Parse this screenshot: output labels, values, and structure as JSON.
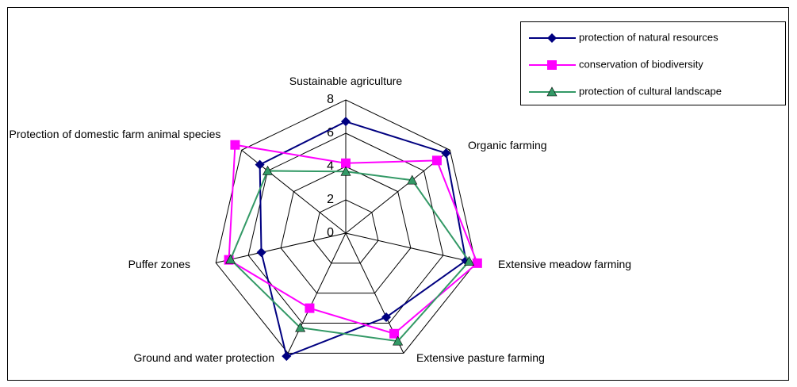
{
  "chart_data": {
    "type": "radar",
    "categories": [
      "Sustainable agriculture",
      "Organic farming",
      "Extensive meadow farming",
      "Extensive pasture farming",
      "Ground and water protection",
      "Puffer zones",
      "Protection of domestic farm animal species"
    ],
    "series": [
      {
        "name": "protection of natural resources",
        "color": "#000080",
        "marker": "diamond",
        "values": [
          6.7,
          7.7,
          7.4,
          5.6,
          8.2,
          5.2,
          6.6
        ]
      },
      {
        "name": "conservation of biodiversity",
        "color": "#ff00ff",
        "marker": "square",
        "values": [
          4.2,
          7.0,
          8.1,
          6.7,
          5.0,
          7.2,
          8.5
        ]
      },
      {
        "name": "protection of cultural landscape",
        "color": "#339966",
        "marker": "triangle",
        "values": [
          3.7,
          5.1,
          7.6,
          7.2,
          6.3,
          7.1,
          6.0
        ]
      }
    ],
    "ylim": [
      0,
      8
    ],
    "yticks": [
      0,
      2,
      4,
      6,
      8
    ],
    "grid": true,
    "legend": "top-right"
  }
}
